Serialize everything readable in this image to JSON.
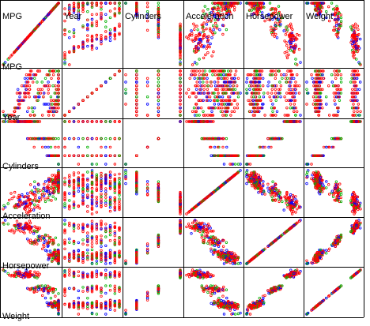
{
  "chart_data": {
    "type": "scatter",
    "chart_kind": "scatter-plot-matrix",
    "variables": [
      "MPG",
      "Year",
      "Cylinders",
      "Acceleration",
      "Horsepower",
      "Weight"
    ],
    "marker": "open-circle",
    "grid": false,
    "color_groups": [
      {
        "color": "#ff0000"
      },
      {
        "color": "#00b000"
      },
      {
        "color": "#0000ff"
      }
    ],
    "colors": {
      "frame": "#000000",
      "background": "#ffffff"
    }
  }
}
